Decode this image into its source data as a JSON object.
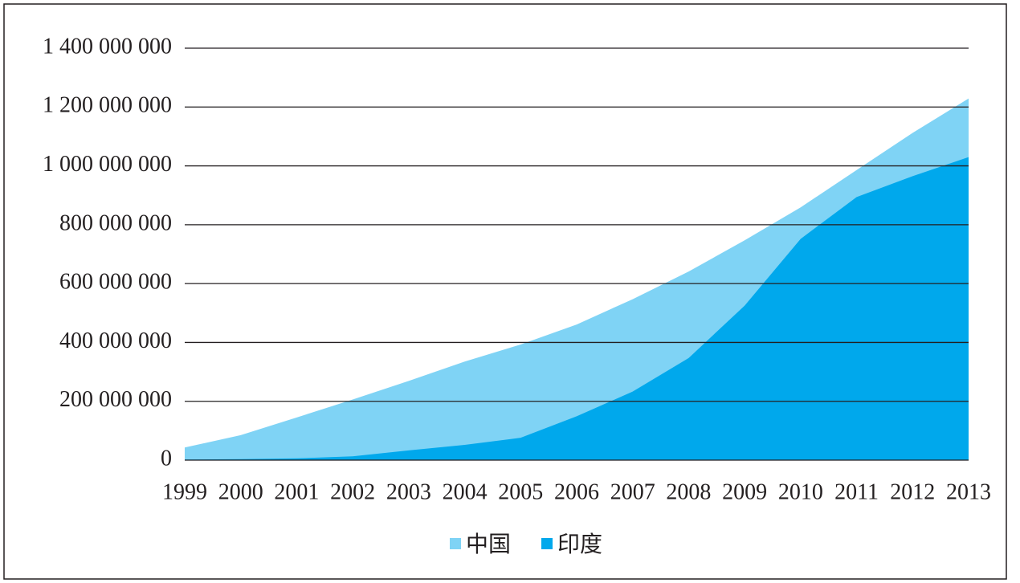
{
  "chart_data": {
    "type": "area",
    "categories": [
      "1999",
      "2000",
      "2001",
      "2002",
      "2003",
      "2004",
      "2005",
      "2006",
      "2007",
      "2008",
      "2009",
      "2010",
      "2011",
      "2012",
      "2013"
    ],
    "series": [
      {
        "name": "中国",
        "color": "#7fd3f5",
        "values": [
          43000000,
          85000000,
          145000000,
          206000000,
          269000000,
          335000000,
          393000000,
          461000000,
          547000000,
          641000000,
          747000000,
          859000000,
          986000000,
          1112000000,
          1229000000
        ]
      },
      {
        "name": "印度",
        "color": "#00a8ec",
        "values": [
          2000000,
          3500000,
          6000000,
          13000000,
          33000000,
          52000000,
          76000000,
          149000000,
          233000000,
          347000000,
          525000000,
          752000000,
          894000000,
          965000000,
          1030000000
        ]
      }
    ],
    "ylim": [
      0,
      1400000000
    ],
    "yticks": [
      0,
      {
        "value": 200000000,
        "label": "200 000 000"
      },
      {
        "value": 400000000,
        "label": "400 000 000"
      },
      {
        "value": 600000000,
        "label": "600 000 000"
      },
      {
        "value": 800000000,
        "label": "800 000 000"
      },
      {
        "value": 1000000000,
        "label": "1 000 000 000"
      },
      {
        "value": 1200000000,
        "label": "1 200 000 000"
      },
      {
        "value": 1400000000,
        "label": "1 400 000 000"
      }
    ],
    "grid": true,
    "legend": "bottom"
  }
}
